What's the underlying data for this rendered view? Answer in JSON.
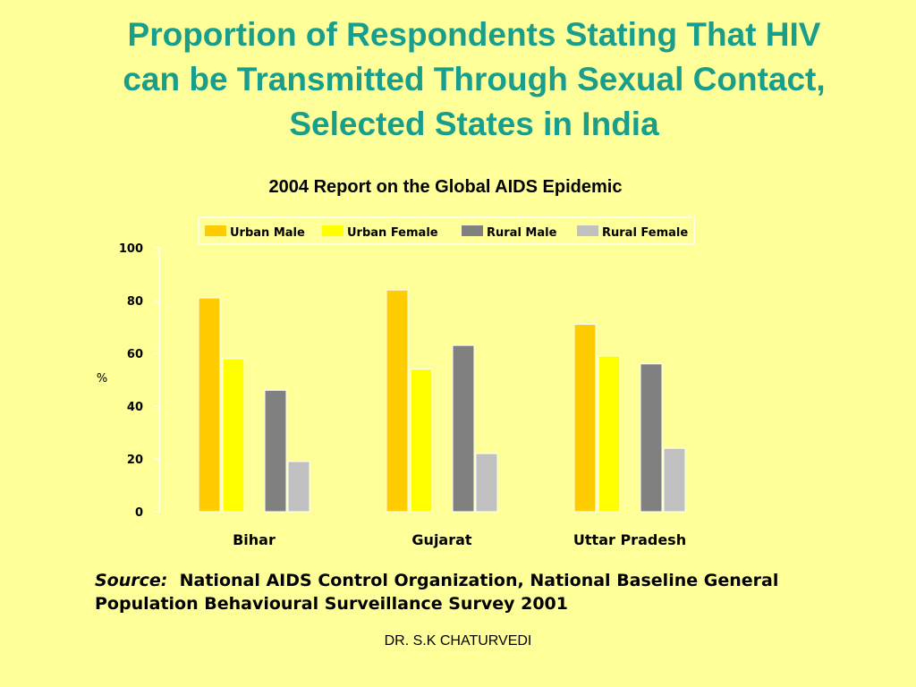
{
  "slide": {
    "title_lines": [
      "Proportion of Respondents Stating That HIV",
      "can be Transmitted Through Sexual Contact,",
      "Selected States in India"
    ],
    "source_label": "Source:",
    "source_text_line1": "National AIDS Control Organization, National Baseline General",
    "source_text_line2": "Population Behavioural Surveillance Survey 2001",
    "author": "DR. S.K CHATURVEDI"
  },
  "chart_data": {
    "type": "bar",
    "title": "2004 Report on the Global AIDS Epidemic",
    "ylabel": "%",
    "xlabel": "",
    "ylim": [
      0,
      100
    ],
    "yticks": [
      0,
      20,
      40,
      60,
      80,
      100
    ],
    "grid": false,
    "legend_position": "top",
    "categories": [
      "Bihar",
      "Gujarat",
      "Uttar Pradesh"
    ],
    "series": [
      {
        "name": "Urban Male",
        "color": "#ffcc00",
        "values": [
          81,
          84,
          71
        ]
      },
      {
        "name": "Urban Female",
        "color": "#ffff00",
        "values": [
          58,
          54,
          59
        ]
      },
      {
        "name": "Rural Male",
        "color": "#808080",
        "values": [
          46,
          63,
          56
        ]
      },
      {
        "name": "Rural Female",
        "color": "#c0c0c0",
        "values": [
          19,
          22,
          24
        ]
      }
    ]
  }
}
